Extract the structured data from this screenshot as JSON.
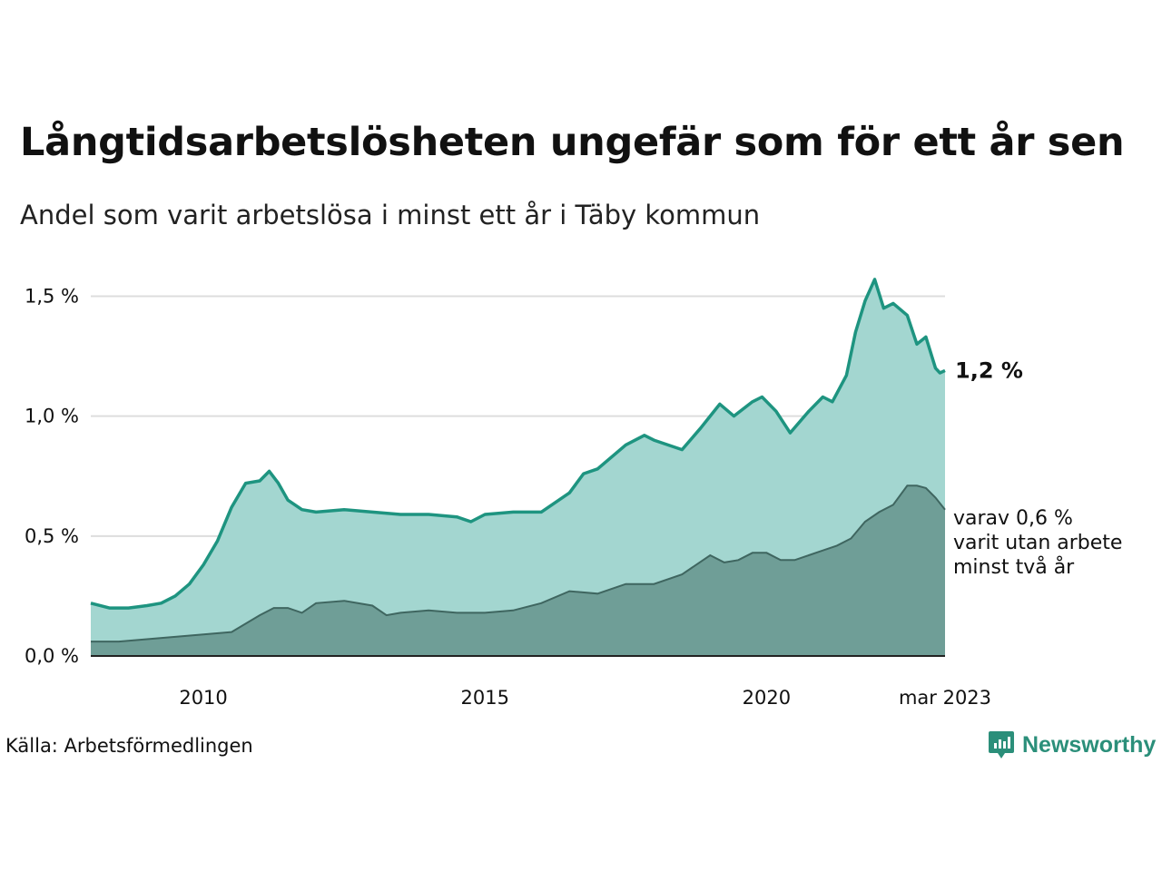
{
  "title": "Långtidsarbetslösheten ungefär som för ett år sen",
  "subtitle": "Andel som varit arbetslösa i minst ett år i Täby kommun",
  "source": "Källa: Arbetsförmedlingen",
  "brand": "Newsworthy",
  "colors": {
    "line_main": "#1e9480",
    "area_main": "#a3d6d0",
    "area_sub": "#6f9e97",
    "line_sub": "#3f6660",
    "grid": "#dddddd",
    "brand": "#2b8f7a"
  },
  "icons": {
    "logo": "chart-bubble-icon"
  },
  "chart_data": {
    "type": "area",
    "xlim": [
      2008.0,
      2023.17
    ],
    "ylim": [
      0,
      1.6
    ],
    "y_ticks": [
      {
        "value": 0.0,
        "label": "0,0 %"
      },
      {
        "value": 0.5,
        "label": "0,5 %"
      },
      {
        "value": 1.0,
        "label": "1,0 %"
      },
      {
        "value": 1.5,
        "label": "1,5 %"
      }
    ],
    "x_ticks": [
      {
        "value": 2010,
        "label": "2010"
      },
      {
        "value": 2015,
        "label": "2015"
      },
      {
        "value": 2020,
        "label": "2020"
      },
      {
        "value": 2023.17,
        "label": "mar 2023"
      }
    ],
    "grid": true,
    "series": [
      {
        "role": "total",
        "end_label": "1,2 %",
        "points": [
          [
            2008.0,
            0.22
          ],
          [
            2008.33,
            0.2
          ],
          [
            2008.67,
            0.2
          ],
          [
            2009.0,
            0.21
          ],
          [
            2009.25,
            0.22
          ],
          [
            2009.5,
            0.25
          ],
          [
            2009.75,
            0.3
          ],
          [
            2010.0,
            0.38
          ],
          [
            2010.25,
            0.48
          ],
          [
            2010.5,
            0.62
          ],
          [
            2010.75,
            0.72
          ],
          [
            2011.0,
            0.73
          ],
          [
            2011.17,
            0.77
          ],
          [
            2011.33,
            0.72
          ],
          [
            2011.5,
            0.65
          ],
          [
            2011.75,
            0.61
          ],
          [
            2012.0,
            0.6
          ],
          [
            2012.5,
            0.61
          ],
          [
            2013.0,
            0.6
          ],
          [
            2013.5,
            0.59
          ],
          [
            2014.0,
            0.59
          ],
          [
            2014.5,
            0.58
          ],
          [
            2014.75,
            0.56
          ],
          [
            2015.0,
            0.59
          ],
          [
            2015.5,
            0.6
          ],
          [
            2016.0,
            0.6
          ],
          [
            2016.5,
            0.68
          ],
          [
            2016.75,
            0.76
          ],
          [
            2017.0,
            0.78
          ],
          [
            2017.5,
            0.88
          ],
          [
            2017.83,
            0.92
          ],
          [
            2018.0,
            0.9
          ],
          [
            2018.5,
            0.86
          ],
          [
            2018.83,
            0.95
          ],
          [
            2019.0,
            1.0
          ],
          [
            2019.17,
            1.05
          ],
          [
            2019.42,
            1.0
          ],
          [
            2019.75,
            1.06
          ],
          [
            2019.92,
            1.08
          ],
          [
            2020.17,
            1.02
          ],
          [
            2020.42,
            0.93
          ],
          [
            2020.75,
            1.02
          ],
          [
            2021.0,
            1.08
          ],
          [
            2021.17,
            1.06
          ],
          [
            2021.42,
            1.17
          ],
          [
            2021.58,
            1.35
          ],
          [
            2021.75,
            1.48
          ],
          [
            2021.92,
            1.57
          ],
          [
            2022.08,
            1.45
          ],
          [
            2022.25,
            1.47
          ],
          [
            2022.5,
            1.42
          ],
          [
            2022.67,
            1.3
          ],
          [
            2022.83,
            1.33
          ],
          [
            2023.0,
            1.2
          ],
          [
            2023.08,
            1.18
          ],
          [
            2023.17,
            1.19
          ]
        ]
      },
      {
        "role": "subset",
        "annotation": [
          "varav 0,6 %",
          "varit utan arbete",
          "minst två år"
        ],
        "points": [
          [
            2008.0,
            0.06
          ],
          [
            2008.5,
            0.06
          ],
          [
            2009.0,
            0.07
          ],
          [
            2009.5,
            0.08
          ],
          [
            2010.0,
            0.09
          ],
          [
            2010.5,
            0.1
          ],
          [
            2011.0,
            0.17
          ],
          [
            2011.25,
            0.2
          ],
          [
            2011.5,
            0.2
          ],
          [
            2011.75,
            0.18
          ],
          [
            2012.0,
            0.22
          ],
          [
            2012.5,
            0.23
          ],
          [
            2013.0,
            0.21
          ],
          [
            2013.25,
            0.17
          ],
          [
            2013.5,
            0.18
          ],
          [
            2014.0,
            0.19
          ],
          [
            2014.5,
            0.18
          ],
          [
            2015.0,
            0.18
          ],
          [
            2015.5,
            0.19
          ],
          [
            2016.0,
            0.22
          ],
          [
            2016.5,
            0.27
          ],
          [
            2017.0,
            0.26
          ],
          [
            2017.5,
            0.3
          ],
          [
            2018.0,
            0.3
          ],
          [
            2018.5,
            0.34
          ],
          [
            2019.0,
            0.42
          ],
          [
            2019.25,
            0.39
          ],
          [
            2019.5,
            0.4
          ],
          [
            2019.75,
            0.43
          ],
          [
            2020.0,
            0.43
          ],
          [
            2020.25,
            0.4
          ],
          [
            2020.5,
            0.4
          ],
          [
            2020.75,
            0.42
          ],
          [
            2021.0,
            0.44
          ],
          [
            2021.25,
            0.46
          ],
          [
            2021.5,
            0.49
          ],
          [
            2021.75,
            0.56
          ],
          [
            2022.0,
            0.6
          ],
          [
            2022.25,
            0.63
          ],
          [
            2022.5,
            0.71
          ],
          [
            2022.67,
            0.71
          ],
          [
            2022.83,
            0.7
          ],
          [
            2023.0,
            0.66
          ],
          [
            2023.17,
            0.61
          ]
        ]
      }
    ]
  }
}
